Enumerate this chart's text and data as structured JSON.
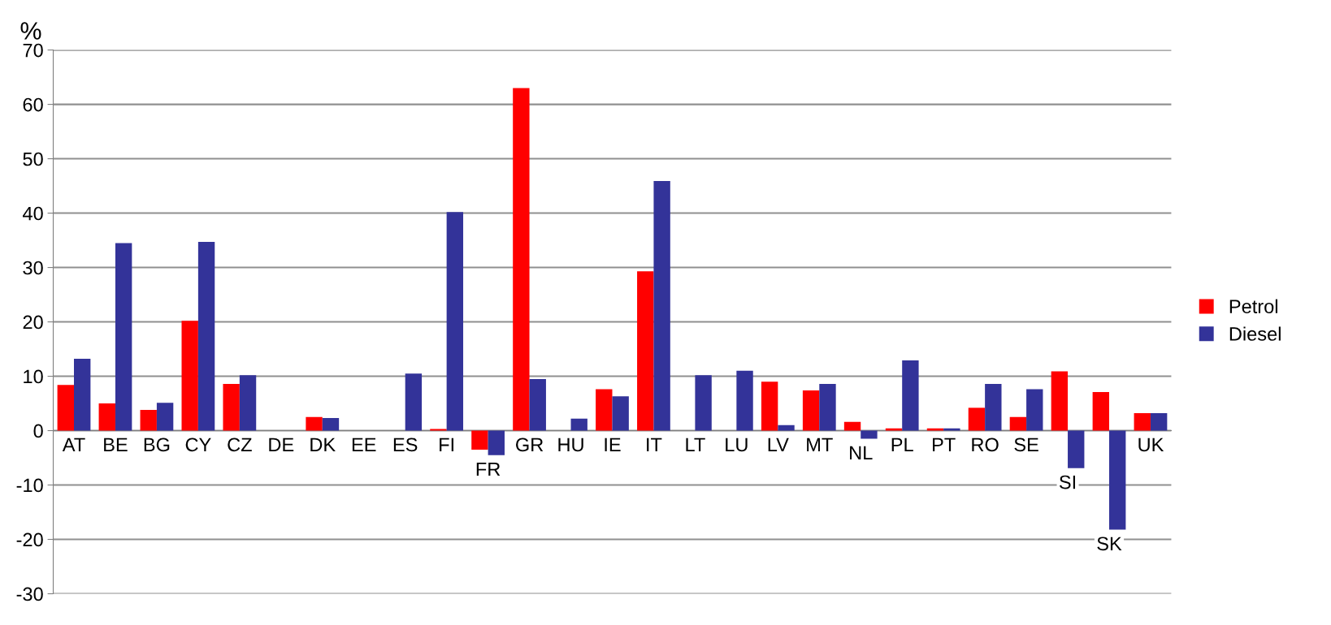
{
  "chart_data": {
    "type": "bar",
    "ylabel": "%",
    "categories": [
      "AT",
      "BE",
      "BG",
      "CY",
      "CZ",
      "DE",
      "DK",
      "EE",
      "ES",
      "FI",
      "FR",
      "GR",
      "HU",
      "IE",
      "IT",
      "LT",
      "LU",
      "LV",
      "MT",
      "NL",
      "PL",
      "PT",
      "RO",
      "SE",
      "SI",
      "SK",
      "UK"
    ],
    "series": [
      {
        "name": "Petrol",
        "color": "#ff0000",
        "values": [
          8.4,
          5,
          3.8,
          20.2,
          8.6,
          0,
          2.5,
          0,
          0,
          0.3,
          -3.5,
          63,
          0,
          7.6,
          29.3,
          0,
          0,
          9,
          7.4,
          1.6,
          0.4,
          0.4,
          4.2,
          2.5,
          10.9,
          7.1,
          3.2
        ]
      },
      {
        "name": "Diesel",
        "color": "#333399",
        "values": [
          13.2,
          34.5,
          5.1,
          34.7,
          10.2,
          0,
          2.3,
          0,
          10.5,
          40.2,
          -4.5,
          9.5,
          2.2,
          6.3,
          45.9,
          10.2,
          11,
          1,
          8.6,
          -1.5,
          12.9,
          0.4,
          8.6,
          7.6,
          -6.9,
          -18.2,
          3.2
        ]
      }
    ],
    "ylim": [
      -30,
      70
    ],
    "yticks": [
      -30,
      -20,
      -10,
      0,
      10,
      20,
      30,
      40,
      50,
      60,
      70
    ],
    "grid": "y",
    "legend": "right"
  }
}
